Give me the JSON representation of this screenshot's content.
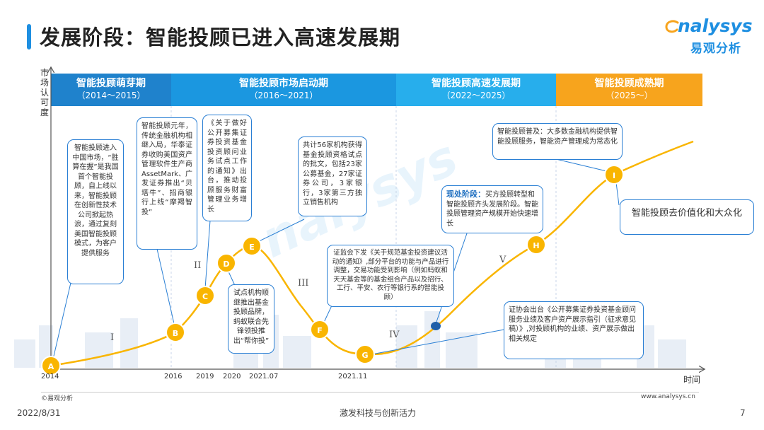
{
  "header": {
    "title": "发展阶段：智能投顾已进入高速发展期"
  },
  "logo": {
    "en": "nalysys",
    "cn": "易观分析"
  },
  "y_axis_label": "市场认可度",
  "x_axis_label": "时间",
  "stages": [
    {
      "name": "智能投顾萌芽期",
      "years": "（2014～2015）",
      "color": "#1F82CC"
    },
    {
      "name": "智能投顾市场启动期",
      "years": "（2016～2021）",
      "color": "#1B97E0"
    },
    {
      "name": "智能投顾高速发展期",
      "years": "（2022～2025）",
      "color": "#27AEEC"
    },
    {
      "name": "智能投顾成熟期",
      "years": "（2025～）",
      "color": "#F7A41D"
    }
  ],
  "x_ticks": [
    "2014",
    "2016",
    "2019",
    "2020",
    "2021.07",
    "2021.11"
  ],
  "points": [
    "A",
    "B",
    "C",
    "D",
    "E",
    "F",
    "G",
    "H",
    "I"
  ],
  "romans": [
    "I",
    "II",
    "III",
    "IV",
    "V"
  ],
  "callouts": {
    "a": "智能投顾进入中国市场，“胜算在握”是我国首个智能投顾，自上线以来，智能投顾在创新性技术公司掀起热浪，通过复刻美国智能投顾模式，为客户提供服务",
    "b": "智能投顾元年，传统金融机构相继入局，华泰证券收购美国资产管理软件生产商AssetMark、广发证券推出“贝塔牛”、招商银行上线“摩羯智投”",
    "c": "《关于做好公开募集证券投资基金投资顾问业务试点工作的通知》出台，推动投顾服务财富管理业务增长",
    "d": "试点机构顺继推出基金投顾品牌，蚂蚁联合先锋领投推出“帮你投”",
    "e": "共计56家机构获得基金投顾资格试点的批文，包括23家公募基金，27家证券公司，3家银行，3家第三方独立销售机构",
    "f": "证监会下发《关于规范基金投资建议活动的通知》,部分平台的功能与产品进行调整，交易功能受到影响（例如蚂蚁和天天基金等的基金组合产品以及招行、工行、平安、农行等银行系的智能投顾）",
    "now_title": "现处阶段：",
    "now": "买方投顾转型和智能投顾齐头发展阶段。智能投顾管理资产规模开始快速增长",
    "g": "证协会出台《公开募集证券投资基金顾问服务业绩及客户资产展示指引（征求意见稿）》,对投顾机构的业绩、资产展示做出相关规定",
    "i": "智能投顾普及：大多数金融机构提供智能投顾服务，智能资产管理成为常态化",
    "future": "智能投顾去价值化和大众化"
  },
  "footer": {
    "source": "©易观分析",
    "website": "www.analysys.cn",
    "date": "2022/8/31",
    "slogan": "激发科技与创新活力",
    "page": "7"
  }
}
